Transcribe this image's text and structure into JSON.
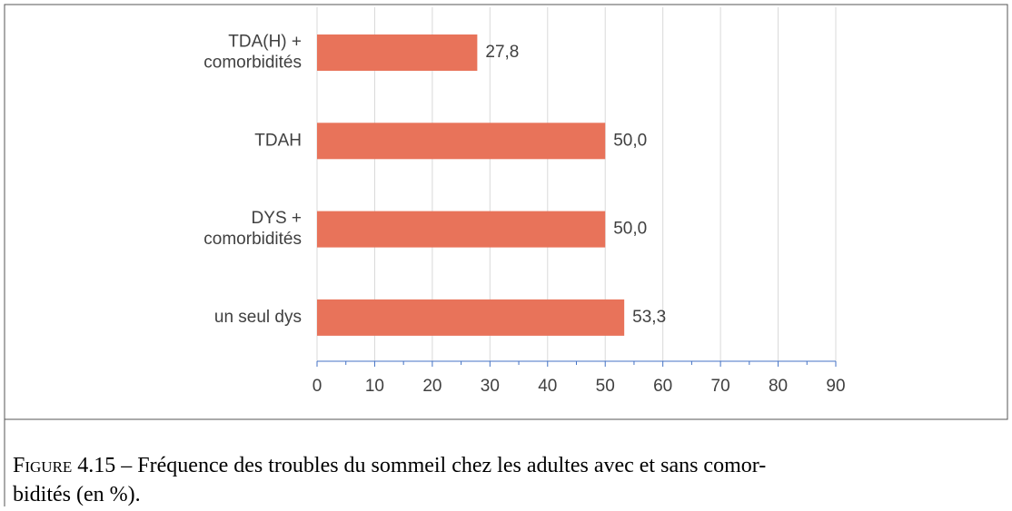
{
  "chart_data": {
    "type": "barh",
    "categories": [
      [
        "TDA(H) +",
        "comorbidités"
      ],
      [
        "TDAH"
      ],
      [
        "DYS +",
        "comorbidités"
      ],
      [
        "un seul dys"
      ]
    ],
    "values": [
      27.8,
      50.0,
      50.0,
      53.3
    ],
    "value_labels": [
      "27,8",
      "50,0",
      "50,0",
      "53,3"
    ],
    "color": "#e8735a",
    "xlim": [
      0,
      90
    ],
    "xticks": [
      0,
      10,
      20,
      30,
      40,
      50,
      60,
      70,
      80,
      90
    ],
    "minor_xticks": [
      5,
      15,
      25,
      35,
      45,
      55,
      65,
      75,
      85
    ],
    "grid": true
  },
  "caption": {
    "label": "Figure 4.15",
    "separator": "–",
    "lines": [
      "Fréquence des troubles du sommeil chez les adultes avec et sans comor-",
      "bidités (en %)."
    ]
  }
}
